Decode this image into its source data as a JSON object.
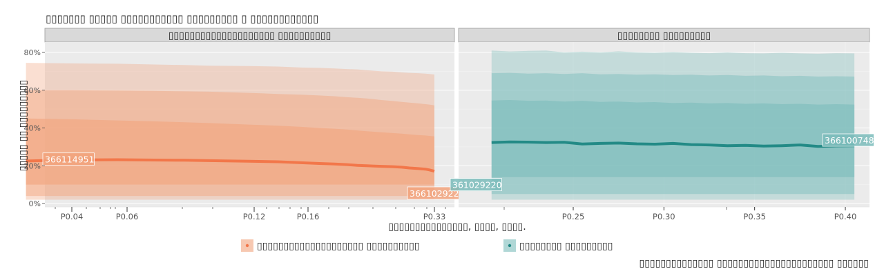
{
  "title": "▯▯▯▯▯▯▯ ▯▯▯▯▯ ▯▯▯▯▯▯▯▯▯▯▯ ▯▯▯▯▯▯▯▯▯ ▯ ▯▯▯▯▯▯▯▯▯▯▯▯",
  "ylabel": "▯▯▯▯▯ ▯▯ ▯▯▯▯▯▯▯▯▯",
  "xlabel": "▯▯▯▯▯▯▯▯▯▯▯▯▯▯▯, ▯▯▯▯, ▯▯▯▯.",
  "legend_caption": "▯▯▯▯▯▯▯▯▯▯▯▯▯▯ ▯▯▯▯▯▯▯▯▯▯▯▯▯▯▯▯▯▯▯▯▯▯ ▯▯▯▯▯▯",
  "colors": {
    "left_band": "#f2a37d",
    "left_line": "#f2774a",
    "right_band": "#7bbcbb",
    "right_line": "#238a86",
    "panel_bg": "#ebebeb",
    "strip_bg": "#d9d9d9",
    "grid": "#ffffff"
  },
  "chart_data": [
    {
      "type": "area",
      "strip": "▯▯▯▯▯▯▯▯▯▯▯▯▯▯▯▯▯▯▯▯ ▯▯▯▯▯▯▯▯▯▯",
      "legend_label": "▯▯▯▯▯▯▯▯▯▯▯▯▯▯▯▯▯▯▯▯ ▯▯▯▯▯▯▯▯▯▯",
      "x_scale": "reciprocal",
      "x_ticks": [
        "P0.04",
        "P0.06",
        "P0.12",
        "P0.16",
        "P0.33"
      ],
      "ylim": [
        0,
        0.8
      ],
      "y_ticks": [
        "0%",
        "20%",
        "40%",
        "60%",
        "80%"
      ],
      "x": [
        0.036,
        0.04,
        0.045,
        0.05,
        0.055,
        0.06,
        0.07,
        0.08,
        0.09,
        0.1,
        0.11,
        0.12,
        0.13,
        0.14,
        0.15,
        0.16,
        0.18,
        0.2,
        0.22,
        0.25,
        0.28,
        0.3,
        0.33
      ],
      "median": [
        0.225,
        0.231,
        0.232,
        0.23,
        0.229,
        0.227,
        0.224,
        0.221,
        0.216,
        0.212,
        0.209,
        0.206,
        0.202,
        0.2,
        0.198,
        0.197,
        0.195,
        0.192,
        0.188,
        0.185,
        0.182,
        0.178,
        0.171
      ],
      "band_outer": [
        [
          0.02,
          0.745
        ],
        [
          0.02,
          0.742
        ],
        [
          0.02,
          0.74
        ],
        [
          0.02,
          0.736
        ],
        [
          0.02,
          0.733
        ],
        [
          0.02,
          0.73
        ],
        [
          0.02,
          0.728
        ],
        [
          0.02,
          0.725
        ],
        [
          0.02,
          0.72
        ],
        [
          0.02,
          0.718
        ],
        [
          0.02,
          0.715
        ],
        [
          0.02,
          0.712
        ],
        [
          0.02,
          0.71
        ],
        [
          0.02,
          0.706
        ],
        [
          0.02,
          0.703
        ],
        [
          0.02,
          0.7
        ],
        [
          0.02,
          0.698
        ],
        [
          0.02,
          0.694
        ],
        [
          0.02,
          0.692
        ],
        [
          0.02,
          0.69
        ],
        [
          0.02,
          0.688
        ],
        [
          0.02,
          0.686
        ],
        [
          0.02,
          0.683
        ]
      ],
      "band_mid": [
        [
          0.04,
          0.6
        ],
        [
          0.04,
          0.6
        ],
        [
          0.04,
          0.598
        ],
        [
          0.04,
          0.596
        ],
        [
          0.04,
          0.594
        ],
        [
          0.04,
          0.592
        ],
        [
          0.04,
          0.586
        ],
        [
          0.04,
          0.58
        ],
        [
          0.04,
          0.576
        ],
        [
          0.04,
          0.572
        ],
        [
          0.04,
          0.568
        ],
        [
          0.04,
          0.563
        ],
        [
          0.04,
          0.56
        ],
        [
          0.04,
          0.556
        ],
        [
          0.04,
          0.552
        ],
        [
          0.04,
          0.548
        ],
        [
          0.04,
          0.543
        ],
        [
          0.04,
          0.538
        ],
        [
          0.04,
          0.534
        ],
        [
          0.04,
          0.53
        ],
        [
          0.04,
          0.526
        ],
        [
          0.04,
          0.524
        ],
        [
          0.04,
          0.52
        ]
      ],
      "band_inner": [
        [
          0.1,
          0.45
        ],
        [
          0.1,
          0.446
        ],
        [
          0.1,
          0.44
        ],
        [
          0.1,
          0.435
        ],
        [
          0.1,
          0.43
        ],
        [
          0.1,
          0.426
        ],
        [
          0.1,
          0.418
        ],
        [
          0.1,
          0.412
        ],
        [
          0.1,
          0.406
        ],
        [
          0.1,
          0.4
        ],
        [
          0.1,
          0.396
        ],
        [
          0.1,
          0.392
        ],
        [
          0.1,
          0.387
        ],
        [
          0.1,
          0.383
        ],
        [
          0.1,
          0.38
        ],
        [
          0.1,
          0.377
        ],
        [
          0.1,
          0.373
        ],
        [
          0.1,
          0.37
        ],
        [
          0.1,
          0.366
        ],
        [
          0.1,
          0.362
        ],
        [
          0.1,
          0.36
        ],
        [
          0.1,
          0.358
        ],
        [
          0.1,
          0.355
        ]
      ],
      "annotations": [
        {
          "text": "366114951",
          "x": 0.036,
          "y": 0.235
        },
        {
          "text": "366102922",
          "x": 0.33,
          "y": 0.055
        }
      ]
    },
    {
      "type": "area",
      "strip": "▯▯▯▯▯▯▯▯ ▯▯▯▯▯▯▯▯▯",
      "legend_label": "▯▯▯▯▯▯▯▯ ▯▯▯▯▯▯▯▯▯",
      "x_scale": "linear",
      "x_ticks": [
        "P0.25",
        "P0.30",
        "P0.35",
        "P0.40"
      ],
      "ylim": [
        0,
        0.8
      ],
      "x": [
        0.205,
        0.215,
        0.225,
        0.235,
        0.245,
        0.255,
        0.265,
        0.275,
        0.285,
        0.295,
        0.305,
        0.315,
        0.325,
        0.335,
        0.345,
        0.355,
        0.365,
        0.375,
        0.385,
        0.395,
        0.405
      ],
      "median": [
        0.323,
        0.326,
        0.325,
        0.323,
        0.324,
        0.315,
        0.318,
        0.32,
        0.316,
        0.314,
        0.318,
        0.312,
        0.31,
        0.306,
        0.308,
        0.304,
        0.306,
        0.31,
        0.302,
        0.305,
        0.306
      ],
      "band_outer": [
        [
          0.02,
          0.81
        ],
        [
          0.02,
          0.805
        ],
        [
          0.02,
          0.808
        ],
        [
          0.02,
          0.81
        ],
        [
          0.02,
          0.8
        ],
        [
          0.02,
          0.804
        ],
        [
          0.02,
          0.8
        ],
        [
          0.02,
          0.806
        ],
        [
          0.02,
          0.8
        ],
        [
          0.02,
          0.798
        ],
        [
          0.02,
          0.802
        ],
        [
          0.02,
          0.798
        ],
        [
          0.02,
          0.796
        ],
        [
          0.02,
          0.8
        ],
        [
          0.02,
          0.796
        ],
        [
          0.02,
          0.795
        ],
        [
          0.02,
          0.798
        ],
        [
          0.02,
          0.795
        ],
        [
          0.02,
          0.793
        ],
        [
          0.02,
          0.796
        ],
        [
          0.02,
          0.795
        ]
      ],
      "band_mid": [
        [
          0.05,
          0.69
        ],
        [
          0.05,
          0.692
        ],
        [
          0.05,
          0.688
        ],
        [
          0.05,
          0.69
        ],
        [
          0.05,
          0.686
        ],
        [
          0.05,
          0.69
        ],
        [
          0.05,
          0.684
        ],
        [
          0.05,
          0.686
        ],
        [
          0.05,
          0.682
        ],
        [
          0.05,
          0.684
        ],
        [
          0.05,
          0.68
        ],
        [
          0.05,
          0.682
        ],
        [
          0.05,
          0.678
        ],
        [
          0.05,
          0.68
        ],
        [
          0.05,
          0.676
        ],
        [
          0.05,
          0.678
        ],
        [
          0.05,
          0.674
        ],
        [
          0.05,
          0.676
        ],
        [
          0.05,
          0.672
        ],
        [
          0.05,
          0.674
        ],
        [
          0.05,
          0.672
        ]
      ],
      "band_inner": [
        [
          0.14,
          0.545
        ],
        [
          0.14,
          0.548
        ],
        [
          0.14,
          0.544
        ],
        [
          0.14,
          0.545
        ],
        [
          0.14,
          0.54
        ],
        [
          0.14,
          0.544
        ],
        [
          0.14,
          0.538
        ],
        [
          0.14,
          0.54
        ],
        [
          0.14,
          0.535
        ],
        [
          0.14,
          0.537
        ],
        [
          0.14,
          0.532
        ],
        [
          0.14,
          0.534
        ],
        [
          0.14,
          0.53
        ],
        [
          0.14,
          0.532
        ],
        [
          0.14,
          0.528
        ],
        [
          0.14,
          0.53
        ],
        [
          0.14,
          0.526
        ],
        [
          0.14,
          0.528
        ],
        [
          0.14,
          0.524
        ],
        [
          0.14,
          0.526
        ],
        [
          0.14,
          0.524
        ]
      ],
      "annotations": [
        {
          "text": "361029220",
          "x": 0.205,
          "y": 0.1
        },
        {
          "text": "366100748",
          "x": 0.405,
          "y": 0.336
        }
      ]
    }
  ]
}
